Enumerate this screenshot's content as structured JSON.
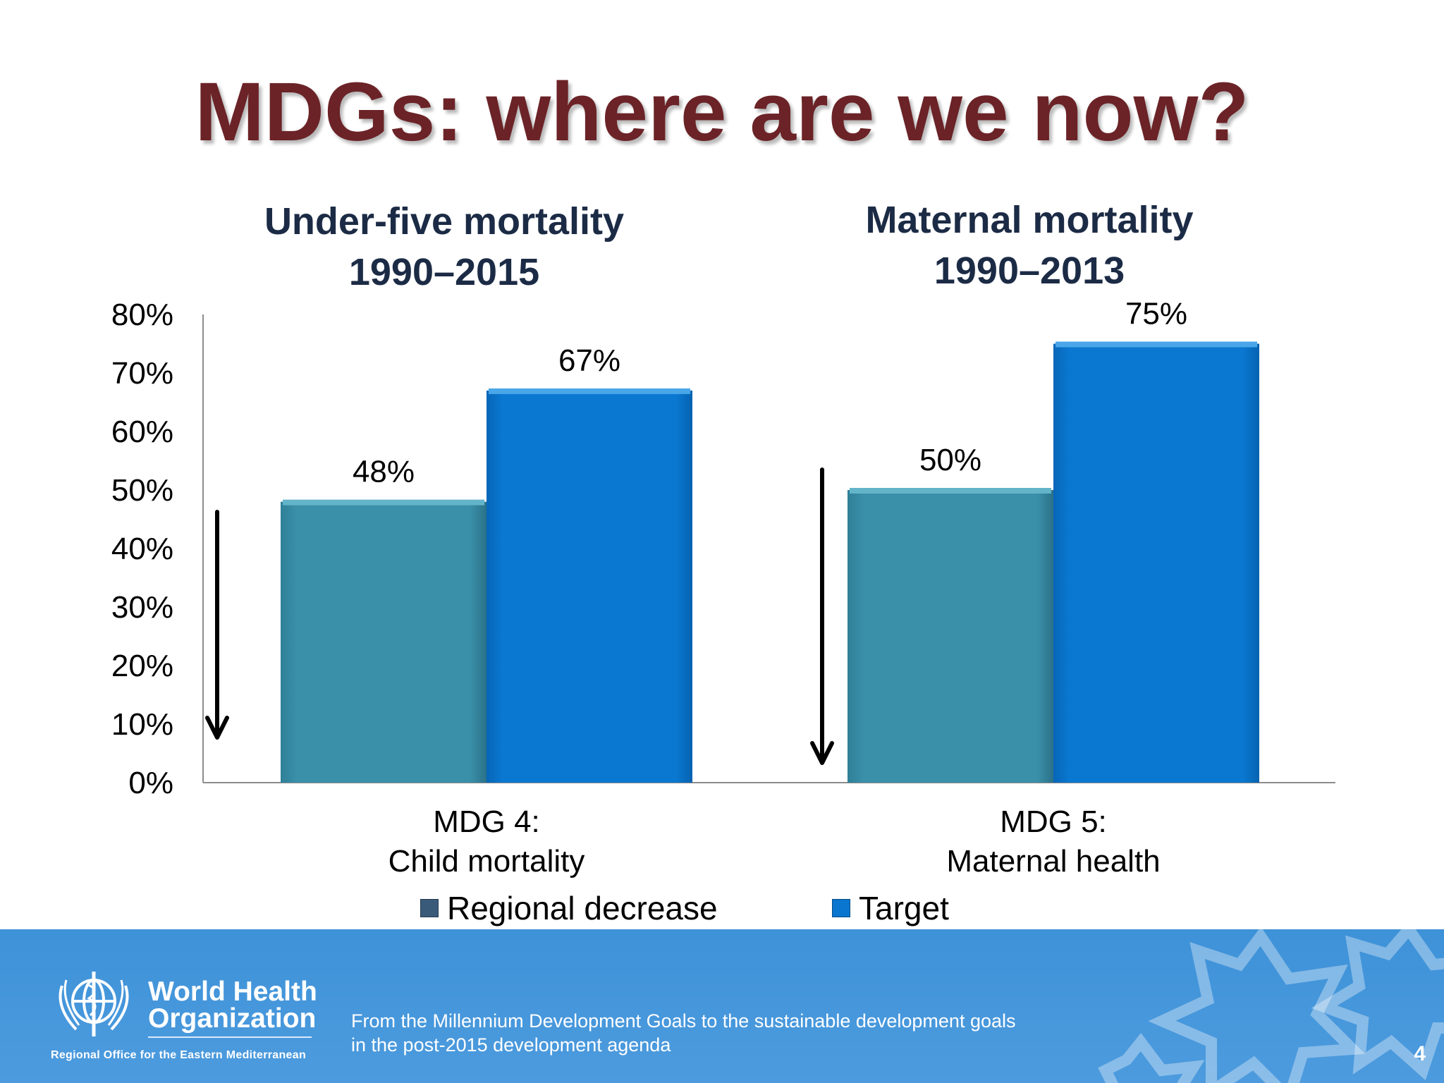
{
  "slide": {
    "title": "MDGs: where are we now?",
    "title_color": "#6b2327",
    "group_title_color": "#1c2b45",
    "page_number": "4"
  },
  "groups": [
    {
      "title_line1": "Under-five mortality",
      "title_line2": "1990–2015"
    },
    {
      "title_line1": "Maternal mortality",
      "title_line2": "1990–2013"
    }
  ],
  "chart_data": {
    "type": "bar",
    "categories": [
      "MDG 4:\nChild mortality",
      "MDG 5:\nMaternal health"
    ],
    "series": [
      {
        "name": "Regional decrease",
        "values": [
          48,
          50
        ],
        "labels": [
          "48%",
          "50%"
        ],
        "color": "#3a8fa7"
      },
      {
        "name": "Target",
        "values": [
          67,
          75
        ],
        "labels": [
          "67%",
          "75%"
        ],
        "color": "#0a76cf"
      }
    ],
    "ylim": [
      0,
      80
    ],
    "yticks": [
      "0%",
      "10%",
      "20%",
      "30%",
      "40%",
      "50%",
      "60%",
      "70%",
      "80%"
    ],
    "grid": false,
    "legend_position": "bottom",
    "annotations": [
      "down-arrow",
      "down-arrow"
    ]
  },
  "footer": {
    "org_name_line1": "World Health",
    "org_name_line2": "Organization",
    "office": "Regional Office for the Eastern Mediterranean",
    "text_line1": "From the Millennium Development Goals to the sustainable development goals",
    "text_line2": "in the post-2015 development agenda",
    "logo_icon": "who-emblem-icon",
    "background_color": "#4296da"
  }
}
